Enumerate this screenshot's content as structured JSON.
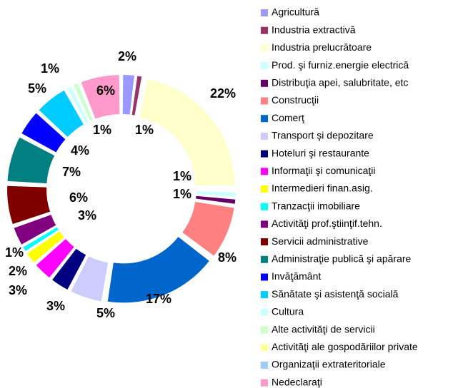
{
  "chart_data": {
    "type": "donut",
    "categories": [
      "Agricultură",
      "Industria extractivă",
      "Industria prelucrătoare",
      "Prod. şi furniz.energie electrică",
      "Distribuţia apei, salubritate, etc",
      "Construcţii",
      "Comerţ",
      "Transport şi depozitare",
      " Hoteluri şi restaurante",
      " Informaţii şi comunicaţii",
      "Intermedieri finan.asig.",
      "Tranzacţii imobiliare",
      "Activităţi prof.ştiinţif.tehn.",
      " Servicii administrative",
      "Administraţie publică şi apărare",
      "Invăţământ",
      "Sănătate şi asistenţă socială",
      "Cultura",
      "Alte activităţi de servicii",
      "Activităţi ale gospodăriilor private",
      "Organizaţii extrateritoriale",
      "Nedeclaraţi"
    ],
    "values": [
      2,
      1,
      22,
      1,
      1,
      8,
      17,
      5,
      3,
      3,
      2,
      1,
      3,
      6,
      7,
      4,
      5,
      1,
      1,
      0,
      0,
      6
    ],
    "value_labels": [
      "2%",
      "1%",
      "22%",
      "1%",
      "1%",
      "8%",
      "17%",
      "5%",
      "3%",
      "3%",
      "2%",
      "1%",
      "3%",
      "6%",
      "7%",
      "4%",
      "5%",
      "1%",
      "1%",
      null,
      null,
      "6%"
    ],
    "colors": [
      "#9999ff",
      "#993366",
      "#ffffcc",
      "#ccffff",
      "#660066",
      "#ff8080",
      "#0066cc",
      "#ccccff",
      "#000080",
      "#ff00ff",
      "#ffff00",
      "#00ffff",
      "#800080",
      "#800000",
      "#008080",
      "#0000ff",
      "#00ccff",
      "#ccffff",
      "#ccffcc",
      "#ffff99",
      "#99ccff",
      "#ff99cc"
    ]
  }
}
